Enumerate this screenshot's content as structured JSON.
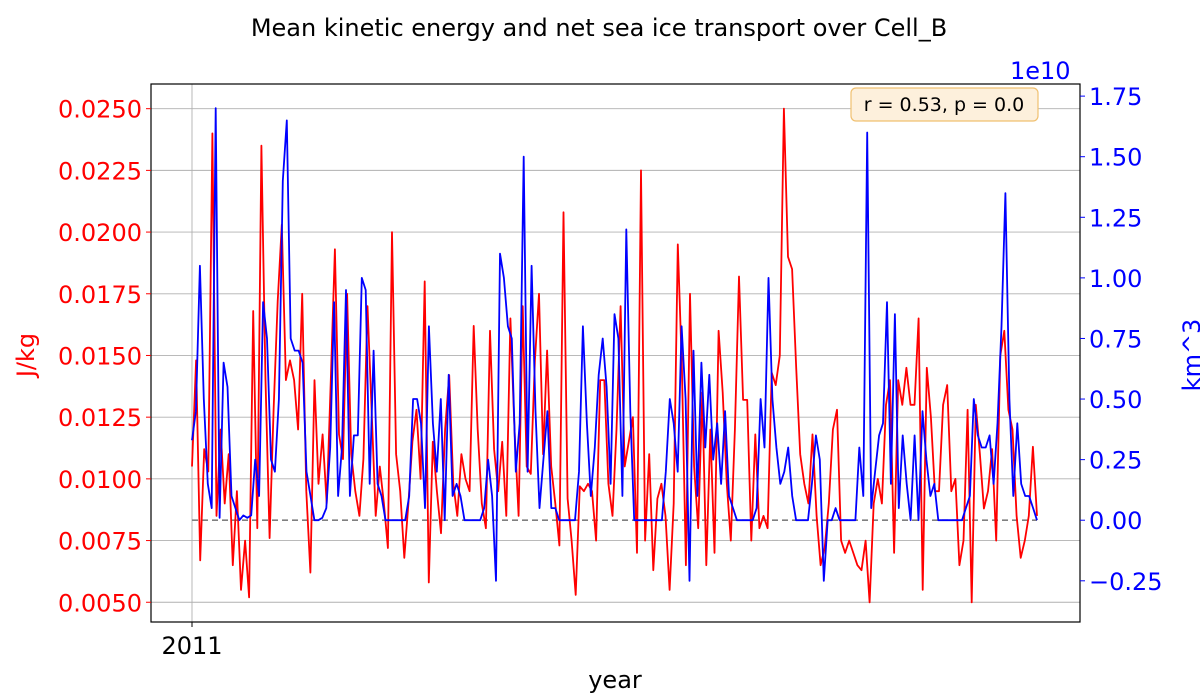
{
  "chart_data": {
    "type": "line",
    "title": "Mean kinetic energy and net sea ice transport over Cell_B",
    "xlabel": "year",
    "ylabel_left": "J/kg",
    "ylabel_right": "km^3",
    "right_axis_multiplier": "1e10",
    "annotation": "r = 0.53, p = 0.0",
    "x_tick_labels": [
      "2011"
    ],
    "left_ticks": [
      "0.0050",
      "0.0075",
      "0.0100",
      "0.0125",
      "0.0150",
      "0.0175",
      "0.0200",
      "0.0225",
      "0.0250"
    ],
    "right_ticks": [
      "−0.25",
      "0.00",
      "0.25",
      "0.50",
      "0.75",
      "1.00",
      "1.25",
      "1.50",
      "1.75"
    ],
    "ylim_left": [
      0.0042,
      0.026
    ],
    "ylim_right": [
      -0.42,
      1.8
    ],
    "grid": true,
    "zero_reference_right": 0.0,
    "colors": {
      "left": "#ff0000",
      "right": "#0000ff",
      "zero_line": "#808080"
    },
    "series": [
      {
        "axis": "left",
        "values": [
          0.0105,
          0.0148,
          0.0067,
          0.0112,
          0.0103,
          0.024,
          0.0085,
          0.012,
          0.009,
          0.011,
          0.0065,
          0.0095,
          0.0055,
          0.0075,
          0.0052,
          0.0168,
          0.008,
          0.0235,
          0.014,
          0.0076,
          0.0128,
          0.0172,
          0.0203,
          0.014,
          0.0148,
          0.014,
          0.012,
          0.0175,
          0.0095,
          0.0062,
          0.014,
          0.0098,
          0.0118,
          0.009,
          0.014,
          0.0193,
          0.0118,
          0.0108,
          0.0175,
          0.011,
          0.0095,
          0.0085,
          0.0108,
          0.017,
          0.0128,
          0.0085,
          0.0105,
          0.009,
          0.0072,
          0.02,
          0.011,
          0.0095,
          0.0068,
          0.009,
          0.0115,
          0.0128,
          0.01,
          0.018,
          0.0058,
          0.0115,
          0.0095,
          0.0078,
          0.012,
          0.0142,
          0.0098,
          0.0085,
          0.011,
          0.01,
          0.0095,
          0.0162,
          0.012,
          0.009,
          0.008,
          0.016,
          0.0112,
          0.0095,
          0.0115,
          0.0085,
          0.0165,
          0.012,
          0.0085,
          0.017,
          0.0105,
          0.0102,
          0.0148,
          0.0175,
          0.011,
          0.0152,
          0.0105,
          0.009,
          0.0073,
          0.0208,
          0.0092,
          0.0075,
          0.0053,
          0.0097,
          0.0095,
          0.0098,
          0.0095,
          0.0075,
          0.014,
          0.014,
          0.0098,
          0.0085,
          0.012,
          0.017,
          0.0105,
          0.0115,
          0.0125,
          0.007,
          0.0225,
          0.0075,
          0.011,
          0.0063,
          0.0092,
          0.0098,
          0.0085,
          0.0055,
          0.009,
          0.0195,
          0.0145,
          0.0065,
          0.0175,
          0.0105,
          0.008,
          0.0135,
          0.0065,
          0.012,
          0.007,
          0.016,
          0.0135,
          0.0098,
          0.0075,
          0.012,
          0.0182,
          0.0132,
          0.0132,
          0.0075,
          0.0118,
          0.008,
          0.0085,
          0.008,
          0.0143,
          0.0138,
          0.015,
          0.025,
          0.019,
          0.0185,
          0.0145,
          0.011,
          0.0098,
          0.009,
          0.0118,
          0.0085,
          0.0065,
          0.0072,
          0.009,
          0.012,
          0.0128,
          0.0075,
          0.007,
          0.0075,
          0.007,
          0.0065,
          0.0063,
          0.0075,
          0.005,
          0.009,
          0.01,
          0.009,
          0.013,
          0.014,
          0.007,
          0.014,
          0.013,
          0.0145,
          0.013,
          0.013,
          0.0165,
          0.0055,
          0.0145,
          0.0125,
          0.0095,
          0.0095,
          0.013,
          0.0138,
          0.0095,
          0.01,
          0.0065,
          0.0075,
          0.0128,
          0.005,
          0.013,
          0.011,
          0.0088,
          0.0095,
          0.0112,
          0.0075,
          0.015,
          0.016,
          0.0128,
          0.012,
          0.0085,
          0.0068,
          0.0075,
          0.0085,
          0.0113,
          0.0085
        ]
      },
      {
        "axis": "right",
        "values": [
          0.33,
          0.45,
          1.05,
          0.5,
          0.15,
          0.05,
          1.7,
          0.01,
          0.65,
          0.55,
          0.1,
          0.05,
          0.0,
          0.02,
          0.01,
          0.02,
          0.25,
          0.1,
          0.9,
          0.75,
          0.25,
          0.2,
          0.5,
          1.4,
          1.65,
          0.75,
          0.7,
          0.7,
          0.65,
          0.2,
          0.1,
          0.0,
          0.0,
          0.01,
          0.05,
          0.3,
          0.9,
          0.1,
          0.3,
          0.95,
          0.1,
          0.35,
          0.35,
          1.0,
          0.95,
          0.15,
          0.7,
          0.15,
          0.1,
          0.0,
          0.0,
          0.0,
          0.0,
          0.0,
          0.0,
          0.1,
          0.5,
          0.5,
          0.4,
          0.05,
          0.8,
          0.4,
          0.2,
          0.5,
          0.0,
          0.6,
          0.1,
          0.15,
          0.1,
          0.0,
          0.0,
          0.0,
          0.0,
          0.0,
          0.05,
          0.25,
          0.1,
          -0.25,
          1.1,
          1.0,
          0.8,
          0.75,
          0.2,
          0.4,
          1.5,
          0.2,
          1.05,
          0.45,
          0.05,
          0.25,
          0.45,
          0.05,
          0.05,
          0.0,
          0.0,
          0.0,
          0.0,
          0.0,
          0.2,
          0.8,
          0.4,
          0.1,
          0.3,
          0.6,
          0.75,
          0.55,
          0.15,
          0.85,
          0.75,
          0.1,
          1.2,
          0.45,
          0.0,
          0.0,
          0.0,
          0.0,
          0.0,
          0.0,
          0.0,
          0.0,
          0.2,
          0.5,
          0.4,
          0.2,
          0.8,
          0.5,
          -0.25,
          0.7,
          0.1,
          0.65,
          0.3,
          0.6,
          0.25,
          0.4,
          0.15,
          0.45,
          0.1,
          0.05,
          0.0,
          0.0,
          0.0,
          0.0,
          0.0,
          0.05,
          0.5,
          0.3,
          1.0,
          0.5,
          0.3,
          0.15,
          0.2,
          0.3,
          0.1,
          0.0,
          0.0,
          0.0,
          0.0,
          0.15,
          0.35,
          0.25,
          -0.25,
          0.0,
          0.0,
          0.05,
          0.0,
          0.0,
          0.0,
          0.0,
          0.0,
          0.3,
          0.1,
          1.6,
          0.05,
          0.2,
          0.35,
          0.4,
          0.9,
          0.15,
          0.85,
          0.05,
          0.35,
          0.15,
          0.0,
          0.35,
          0.0,
          0.45,
          0.25,
          0.1,
          0.15,
          0.0,
          0.0,
          0.0,
          0.0,
          0.0,
          0.0,
          0.0,
          0.05,
          0.1,
          0.5,
          0.35,
          0.3,
          0.3,
          0.35,
          0.15,
          0.4,
          0.8,
          1.35,
          0.5,
          0.1,
          0.4,
          0.15,
          0.1,
          0.1,
          0.05,
          0.0
        ]
      }
    ]
  }
}
